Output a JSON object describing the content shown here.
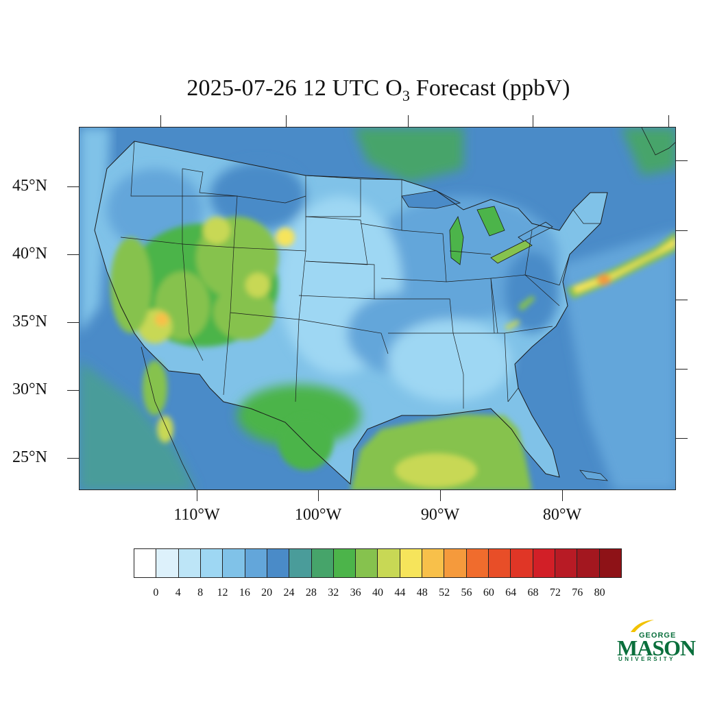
{
  "title": {
    "prefix": "2025-07-26 12 UTC O",
    "subscript": "3",
    "suffix": " Forecast (ppbV)"
  },
  "latitude_labels": [
    "45°N",
    "40°N",
    "35°N",
    "30°N",
    "25°N"
  ],
  "longitude_labels": [
    "110°W",
    "100°W",
    "90°W",
    "80°W"
  ],
  "colorbar": {
    "colors": [
      "#ffffff",
      "#ddf1fb",
      "#bde5f7",
      "#9ed7f3",
      "#80c2e8",
      "#63a6da",
      "#4a8bc8",
      "#4a9c9a",
      "#46a46a",
      "#4cb44a",
      "#86c24e",
      "#c8d855",
      "#f6e45b",
      "#f8c04a",
      "#f59a3c",
      "#f06c2d",
      "#e84e28",
      "#e03626",
      "#d21f27",
      "#b81b25",
      "#a3171f",
      "#8e1217"
    ],
    "tick_labels": [
      "0",
      "4",
      "8",
      "12",
      "16",
      "20",
      "24",
      "28",
      "32",
      "36",
      "40",
      "44",
      "48",
      "52",
      "56",
      "60",
      "64",
      "68",
      "72",
      "76",
      "80"
    ]
  },
  "logo": {
    "top": "GEORGE",
    "main": "MASON",
    "bottom": "UNIVERSITY",
    "color": "#0a6f3c",
    "accent": "#f2c200"
  },
  "map": {
    "ocean_color": "#4a8bc8",
    "gulf_color": "#86c24e",
    "plume_color": "#f6e45b",
    "boundary_color": "#1a1a1a"
  }
}
